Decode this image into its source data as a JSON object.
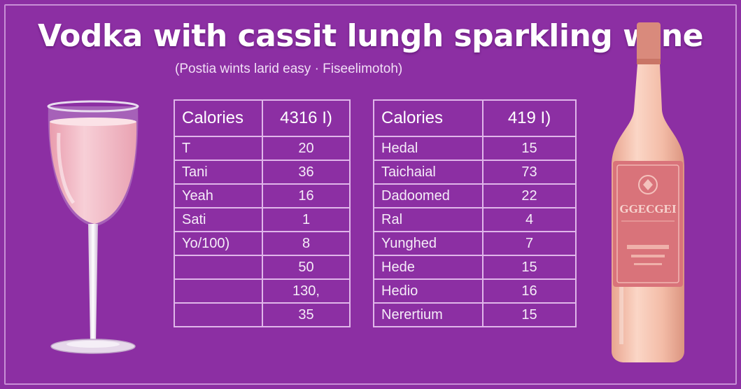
{
  "title": "Vodka with cassit lungh sparkling wine",
  "subtitle": "(Postia wints larid easy · Fiseelimotoh)",
  "bottle_label": "GGECGEI",
  "left_table": {
    "header": [
      "Calories",
      "4316 I)"
    ],
    "rows": [
      [
        "T",
        "20"
      ],
      [
        "Tani",
        "36"
      ],
      [
        "Yeah",
        "16"
      ],
      [
        "Sati",
        "1"
      ],
      [
        "Yo/100)",
        "8"
      ],
      [
        "",
        "50"
      ],
      [
        "",
        "130,"
      ],
      [
        "",
        "35"
      ]
    ]
  },
  "right_table": {
    "header": [
      "Calories",
      "419 I)"
    ],
    "rows": [
      [
        "Hedal",
        "15"
      ],
      [
        "Taichaial",
        "73"
      ],
      [
        "Dadoomed",
        "22"
      ],
      [
        "Ral",
        "4"
      ],
      [
        "Yunghed",
        "7"
      ],
      [
        "Hede",
        "15"
      ],
      [
        "Hedio",
        "16"
      ],
      [
        "Nerertium",
        "15"
      ]
    ]
  },
  "colors": {
    "background": "#8c2fa3",
    "table_border": "#e0b6ea",
    "wine": "#f2b9c4",
    "bottle": "#f3c0ad",
    "bottle_label": "#d9737a"
  }
}
